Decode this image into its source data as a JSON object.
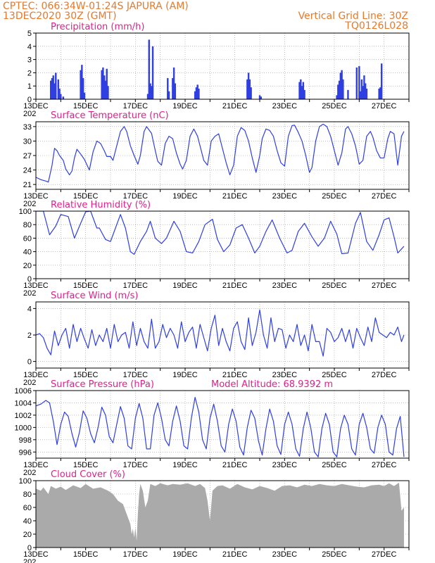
{
  "header": {
    "line1_left": "CPTEC:   066:34W-01:24S  JAPURA (AM)",
    "line2_left": "13DEC2020 30Z (GMT)",
    "line1_right": "Vertical Grid Line: 30Z",
    "line2_right": "TQ0126L028"
  },
  "colors": {
    "line": "#2f3fe0",
    "bar": "#2f3fe0",
    "cloud": "#aaaaaa",
    "title": "#e0208a",
    "header": "#e8792a",
    "grid": "#999999"
  },
  "x_axis": {
    "labels": [
      "13DEC",
      "15DEC",
      "17DEC",
      "19DEC",
      "21DEC",
      "23DEC",
      "25DEC",
      "27DEC"
    ],
    "start_fragment": "202",
    "days": 15
  },
  "chart_data": [
    {
      "type": "bar",
      "title": "Precipitation (mm/h)",
      "ylim": [
        0,
        5
      ],
      "yticks": [
        "0",
        "1",
        "2",
        "3",
        "4",
        "5"
      ],
      "x_unit": "days since 13DEC",
      "x": [
        0.6,
        0.65,
        0.7,
        0.75,
        0.8,
        0.9,
        0.95,
        1.0,
        1.1,
        1.8,
        1.85,
        1.9,
        1.95,
        2.65,
        2.7,
        2.75,
        2.8,
        2.85,
        2.9,
        4.5,
        4.55,
        4.6,
        4.65,
        4.7,
        5.3,
        5.35,
        5.5,
        5.55,
        5.6,
        6.4,
        6.45,
        6.5,
        6.55,
        8.5,
        8.55,
        8.6,
        8.65,
        9.0,
        9.05,
        10.6,
        10.65,
        10.7,
        10.75,
        10.8,
        12.1,
        12.15,
        12.2,
        12.25,
        12.3,
        12.35,
        12.55,
        12.9,
        13.0,
        13.05,
        13.1,
        13.15,
        13.2,
        13.25,
        13.3,
        13.8,
        13.85,
        13.9
      ],
      "values": [
        1.4,
        1.6,
        1.8,
        1.2,
        2.0,
        1.5,
        0.8,
        0.4,
        0.2,
        2.2,
        2.6,
        1.6,
        0.5,
        2.2,
        2.4,
        1.8,
        1.4,
        2.3,
        1.0,
        0.4,
        4.5,
        1.2,
        1.0,
        4.0,
        1.6,
        0.6,
        1.6,
        2.4,
        1.2,
        0.6,
        0.9,
        1.1,
        0.8,
        1.5,
        2.0,
        1.5,
        0.9,
        0.3,
        0.2,
        1.3,
        1.5,
        1.0,
        1.3,
        0.7,
        0.3,
        1.1,
        1.4,
        2.0,
        2.2,
        1.5,
        0.7,
        2.4,
        2.5,
        0.6,
        1.5,
        1.0,
        1.8,
        1.2,
        0.8,
        0.8,
        0.9,
        2.7
      ]
    },
    {
      "type": "line",
      "title": "Surface Temperature (nC)",
      "ylim": [
        20,
        34
      ],
      "yticks": [
        "21",
        "24",
        "27",
        "30",
        "33"
      ],
      "x": [
        0,
        0.2,
        0.4,
        0.5,
        0.65,
        0.75,
        0.85,
        0.95,
        1.1,
        1.2,
        1.35,
        1.45,
        1.55,
        1.65,
        1.8,
        1.95,
        2.15,
        2.3,
        2.45,
        2.6,
        2.75,
        2.85,
        3.0,
        3.1,
        3.25,
        3.4,
        3.55,
        3.65,
        3.8,
        3.95,
        4.1,
        4.2,
        4.35,
        4.45,
        4.65,
        4.8,
        4.9,
        5.05,
        5.2,
        5.35,
        5.5,
        5.65,
        5.8,
        5.9,
        6.05,
        6.2,
        6.35,
        6.5,
        6.65,
        6.75,
        6.9,
        7.05,
        7.2,
        7.35,
        7.5,
        7.65,
        7.8,
        7.95,
        8.1,
        8.25,
        8.4,
        8.55,
        8.7,
        8.85,
        9.0,
        9.1,
        9.25,
        9.4,
        9.55,
        9.7,
        9.85,
        10.0,
        10.15,
        10.3,
        10.4,
        10.55,
        10.7,
        10.85,
        11.0,
        11.1,
        11.25,
        11.4,
        11.55,
        11.7,
        11.85,
        12.0,
        12.15,
        12.3,
        12.45,
        12.55,
        12.7,
        12.85,
        13.0,
        13.15,
        13.3,
        13.45,
        13.55,
        13.7,
        13.85,
        14.0,
        14.15,
        14.25,
        14.4,
        14.55,
        14.7,
        14.8
      ],
      "values": [
        22.5,
        22.0,
        21.7,
        21.5,
        25.0,
        28.5,
        28.0,
        27.0,
        26.0,
        24.2,
        23.0,
        23.8,
        26.5,
        28.3,
        27.3,
        26.2,
        24.0,
        27.8,
        30.0,
        29.5,
        28.0,
        26.8,
        26.8,
        26.0,
        29.0,
        32.0,
        33.0,
        32.0,
        29.0,
        27.0,
        25.2,
        27.0,
        32.0,
        33.0,
        31.6,
        28.0,
        25.8,
        25.0,
        29.5,
        31.0,
        30.5,
        27.5,
        25.2,
        24.2,
        26.0,
        31.0,
        32.5,
        31.0,
        28.0,
        26.0,
        25.0,
        30.0,
        31.0,
        31.5,
        28.5,
        25.5,
        23.0,
        25.0,
        31.0,
        32.8,
        32.2,
        30.0,
        26.5,
        23.5,
        27.0,
        30.5,
        32.5,
        32.2,
        31.0,
        28.0,
        25.5,
        24.8,
        31.0,
        33.2,
        33.3,
        31.8,
        30.0,
        27.0,
        23.5,
        24.5,
        30.0,
        33.0,
        33.5,
        33.0,
        31.0,
        28.0,
        25.0,
        27.5,
        32.5,
        33.0,
        31.5,
        29.0,
        25.2,
        26.0,
        31.0,
        32.0,
        30.8,
        28.0,
        26.5,
        26.5,
        30.5,
        32.0,
        31.5,
        25.0,
        31.0,
        32.0
      ]
    },
    {
      "type": "line",
      "title": "Relative Humidity (%)",
      "ylim": [
        0,
        100
      ],
      "yticks": [
        "0",
        "20",
        "40",
        "60",
        "80",
        "100"
      ],
      "x": [
        0,
        0.3,
        0.55,
        0.8,
        1.0,
        1.3,
        1.55,
        1.8,
        2.0,
        2.2,
        2.45,
        2.55,
        2.8,
        3.0,
        3.2,
        3.4,
        3.6,
        3.8,
        3.95,
        4.2,
        4.45,
        4.6,
        4.8,
        5.05,
        5.25,
        5.55,
        5.8,
        6.05,
        6.3,
        6.55,
        6.8,
        7.1,
        7.3,
        7.55,
        7.8,
        8.05,
        8.3,
        8.55,
        8.8,
        9.0,
        9.25,
        9.5,
        9.8,
        10.1,
        10.3,
        10.55,
        10.8,
        11.1,
        11.35,
        11.6,
        11.85,
        12.1,
        12.3,
        12.55,
        12.85,
        13.05,
        13.3,
        13.55,
        13.8,
        14.0,
        14.2,
        14.4,
        14.55,
        14.8
      ],
      "values": [
        100,
        100,
        65,
        78,
        95,
        92,
        60,
        82,
        99,
        100,
        75,
        75,
        58,
        55,
        75,
        95,
        75,
        40,
        36,
        55,
        70,
        85,
        60,
        52,
        60,
        85,
        70,
        40,
        38,
        55,
        80,
        88,
        58,
        40,
        50,
        75,
        80,
        60,
        38,
        48,
        70,
        87,
        60,
        38,
        42,
        70,
        82,
        62,
        48,
        60,
        85,
        66,
        37,
        38,
        82,
        98,
        55,
        42,
        65,
        87,
        90,
        62,
        38,
        48
      ]
    },
    {
      "type": "line",
      "title": "Surface Wind (m/s)",
      "ylim": [
        -0.5,
        4.5
      ],
      "yticks": [
        "0",
        "2",
        "4"
      ],
      "x": [
        0,
        0.15,
        0.3,
        0.45,
        0.6,
        0.75,
        0.9,
        1.05,
        1.2,
        1.35,
        1.5,
        1.65,
        1.8,
        1.95,
        2.1,
        2.25,
        2.4,
        2.55,
        2.7,
        2.85,
        3.0,
        3.15,
        3.3,
        3.45,
        3.6,
        3.75,
        3.9,
        4.05,
        4.2,
        4.35,
        4.5,
        4.65,
        4.8,
        4.95,
        5.1,
        5.25,
        5.4,
        5.55,
        5.7,
        5.85,
        6.0,
        6.15,
        6.3,
        6.45,
        6.6,
        6.75,
        6.9,
        7.05,
        7.2,
        7.35,
        7.5,
        7.65,
        7.8,
        7.95,
        8.1,
        8.25,
        8.4,
        8.55,
        8.7,
        8.85,
        9.0,
        9.15,
        9.3,
        9.45,
        9.6,
        9.75,
        9.9,
        10.05,
        10.2,
        10.35,
        10.5,
        10.65,
        10.8,
        10.95,
        11.1,
        11.25,
        11.4,
        11.55,
        11.7,
        11.85,
        12.0,
        12.15,
        12.3,
        12.45,
        12.6,
        12.75,
        12.9,
        13.05,
        13.2,
        13.35,
        13.5,
        13.65,
        13.8,
        13.95,
        14.1,
        14.25,
        14.4,
        14.55,
        14.7,
        14.8
      ],
      "values": [
        2.0,
        2.1,
        1.8,
        1.0,
        0.5,
        2.3,
        1.2,
        2.0,
        2.5,
        1.0,
        2.8,
        1.5,
        2.5,
        1.7,
        1.0,
        2.4,
        1.2,
        2.0,
        1.5,
        2.5,
        1.0,
        2.8,
        1.5,
        2.0,
        2.2,
        1.0,
        3.0,
        1.2,
        2.5,
        1.5,
        1.0,
        3.2,
        1.0,
        1.5,
        2.8,
        1.8,
        2.5,
        2.0,
        1.0,
        3.0,
        1.5,
        2.2,
        2.6,
        1.0,
        2.8,
        1.8,
        0.8,
        2.5,
        3.5,
        1.2,
        2.5,
        1.5,
        0.8,
        2.5,
        3.0,
        1.5,
        0.9,
        3.3,
        1.2,
        2.2,
        3.9,
        2.0,
        1.0,
        3.3,
        1.5,
        2.5,
        2.4,
        1.0,
        2.0,
        1.5,
        2.8,
        1.2,
        2.0,
        0.8,
        2.8,
        1.5,
        1.5,
        0.4,
        2.5,
        2.2,
        1.5,
        1.8,
        2.5,
        1.5,
        2.4,
        1.0,
        2.5,
        1.8,
        1.2,
        2.6,
        1.5,
        3.3,
        2.2,
        2.0,
        1.8,
        2.2,
        2.0,
        2.6,
        1.5,
        2.0
      ]
    },
    {
      "type": "line",
      "title": "Surface Pressure (hPa)",
      "subtitle": "Model Altitude: 68.9392 m",
      "ylim": [
        995,
        1006
      ],
      "yticks": [
        "996",
        "998",
        "1000",
        "1002",
        "1004",
        "1006"
      ],
      "x": [
        0,
        0.2,
        0.4,
        0.55,
        0.7,
        0.85,
        1.0,
        1.15,
        1.3,
        1.45,
        1.6,
        1.75,
        1.9,
        2.05,
        2.2,
        2.35,
        2.5,
        2.65,
        2.8,
        2.95,
        3.1,
        3.25,
        3.4,
        3.55,
        3.7,
        3.85,
        4.0,
        4.15,
        4.3,
        4.45,
        4.6,
        4.75,
        4.9,
        5.05,
        5.2,
        5.35,
        5.5,
        5.65,
        5.8,
        5.95,
        6.1,
        6.25,
        6.4,
        6.55,
        6.7,
        6.85,
        7.0,
        7.15,
        7.3,
        7.45,
        7.6,
        7.75,
        7.9,
        8.05,
        8.2,
        8.35,
        8.5,
        8.65,
        8.8,
        8.95,
        9.1,
        9.25,
        9.4,
        9.55,
        9.7,
        9.85,
        10.0,
        10.15,
        10.3,
        10.45,
        10.6,
        10.75,
        10.9,
        11.05,
        11.2,
        11.35,
        11.5,
        11.65,
        11.8,
        11.95,
        12.1,
        12.25,
        12.4,
        12.55,
        12.7,
        12.85,
        13.0,
        13.15,
        13.3,
        13.45,
        13.6,
        13.75,
        13.9,
        14.05,
        14.2,
        14.35,
        14.5,
        14.65,
        14.8
      ],
      "values": [
        1003.5,
        1003.8,
        1004.4,
        1004.0,
        1001.0,
        997.2,
        1000.5,
        1002.5,
        1001.8,
        999.0,
        996.8,
        999.2,
        1002.7,
        1001.5,
        999.0,
        997.5,
        1000.0,
        1003.3,
        1002.0,
        998.5,
        997.5,
        1000.5,
        1003.4,
        1001.5,
        997.0,
        996.5,
        1001.5,
        1003.9,
        1001.5,
        996.5,
        996.5,
        1002.0,
        1004.0,
        1001.5,
        998.0,
        997.0,
        1001.0,
        1003.5,
        1001.0,
        997.0,
        996.5,
        1001.5,
        1004.9,
        1002.5,
        998.0,
        996.5,
        1001.5,
        1003.8,
        1001.0,
        997.0,
        996.0,
        1000.5,
        1003.0,
        1001.0,
        996.8,
        995.5,
        1000.0,
        1002.8,
        1001.5,
        997.8,
        995.5,
        999.8,
        1003.0,
        1001.0,
        997.0,
        995.6,
        1000.5,
        1002.5,
        1000.5,
        996.5,
        995.3,
        999.8,
        1002.5,
        1000.0,
        996.0,
        995.2,
        999.8,
        1002.3,
        1000.5,
        996.0,
        995.2,
        999.8,
        1002.0,
        1000.5,
        996.5,
        995.5,
        1000.5,
        1002.3,
        1000.0,
        996.5,
        995.8,
        1000.0,
        1002.0,
        1000.5,
        996.0,
        995.5,
        999.8,
        1001.8,
        995.2
      ]
    },
    {
      "type": "area",
      "title": "Cloud Cover (%)",
      "ylim": [
        0,
        100
      ],
      "yticks": [
        "0",
        "20",
        "40",
        "60",
        "80",
        "100"
      ],
      "x": [
        0,
        0.2,
        0.3,
        0.5,
        0.6,
        0.8,
        1.0,
        1.2,
        1.5,
        1.8,
        2.0,
        2.3,
        2.6,
        2.9,
        3.1,
        3.3,
        3.5,
        3.6,
        3.7,
        3.8,
        3.85,
        3.9,
        3.95,
        4.0,
        4.05,
        4.1,
        4.15,
        4.2,
        4.3,
        4.4,
        4.5,
        4.6,
        4.8,
        5.0,
        5.3,
        5.5,
        5.8,
        6.1,
        6.4,
        6.6,
        6.8,
        6.9,
        7.0,
        7.1,
        7.3,
        7.5,
        7.8,
        8.1,
        8.4,
        8.7,
        9.0,
        9.3,
        9.6,
        9.9,
        10.2,
        10.5,
        10.8,
        11.1,
        11.4,
        11.7,
        12.0,
        12.3,
        12.6,
        12.9,
        13.2,
        13.5,
        13.8,
        14.0,
        14.2,
        14.4,
        14.6,
        14.7,
        14.8
      ],
      "values": [
        88,
        85,
        90,
        80,
        92,
        88,
        91,
        86,
        93,
        89,
        95,
        88,
        90,
        85,
        80,
        70,
        65,
        55,
        45,
        35,
        20,
        28,
        15,
        30,
        10,
        50,
        80,
        95,
        85,
        60,
        70,
        95,
        92,
        96,
        93,
        95,
        94,
        96,
        92,
        95,
        89,
        70,
        40,
        85,
        92,
        93,
        88,
        95,
        90,
        87,
        92,
        89,
        85,
        92,
        93,
        90,
        94,
        92,
        95,
        93,
        92,
        95,
        93,
        91,
        90,
        93,
        94,
        92,
        96,
        92,
        97,
        55,
        60
      ]
    }
  ]
}
